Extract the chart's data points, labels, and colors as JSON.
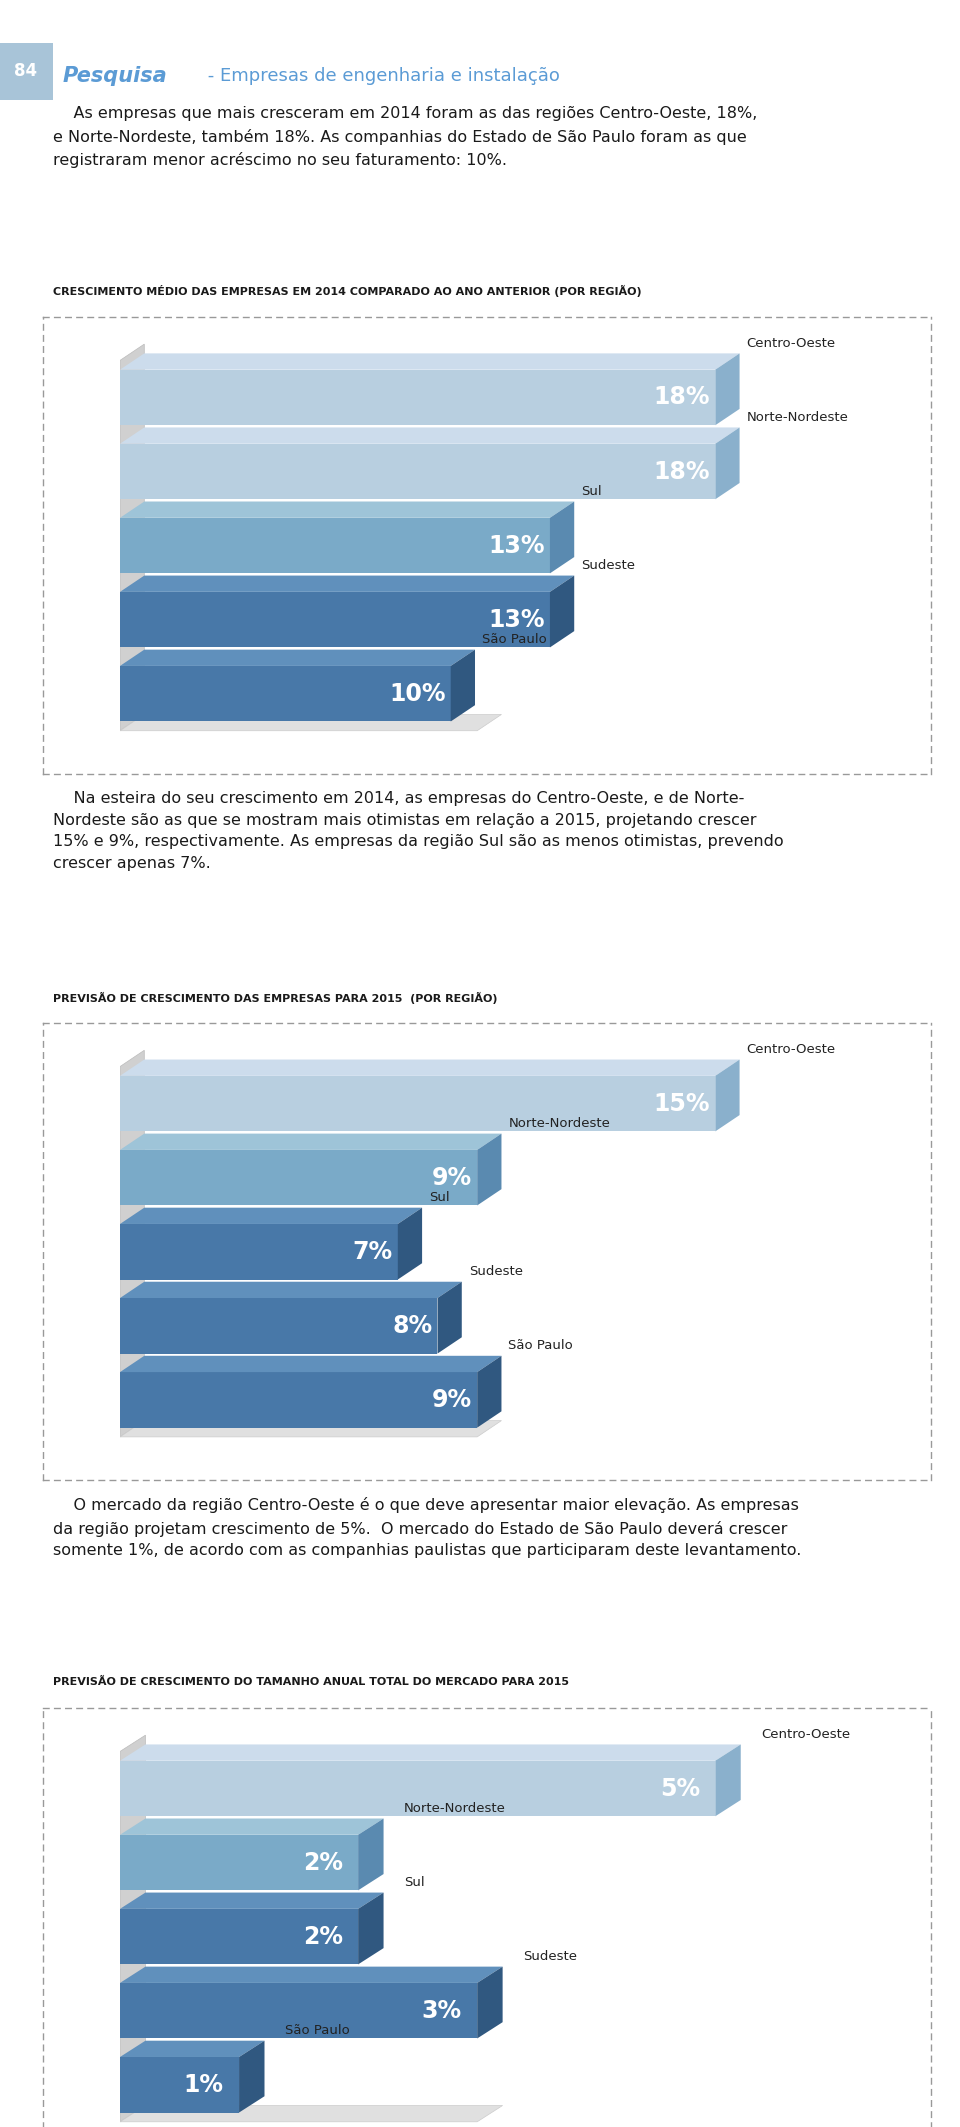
{
  "page_bg": "#ffffff",
  "header_strip_color": "#a8c4d8",
  "header_num": "84",
  "header_pesquisa": "Pesquisa",
  "header_subtitle": " - Empresas de engenharia e instalação",
  "header_color": "#5b9bd5",
  "para1_lines": [
    "    As empresas que mais cresceram em 2014 foram as das regiões Centro-Oeste, 18%,",
    "e Norte-Nordeste, também 18%. As companhias do Estado de São Paulo foram as que",
    "registraram menor acréscimo no seu faturamento: 10%."
  ],
  "chart1_title": "CRESCIMENTO MÉDIO DAS EMPRESAS EM 2014 COMPARADO AO ANO ANTERIOR (POR REGIÃO)",
  "chart1_categories": [
    "Centro-Oeste",
    "Norte-Nordeste",
    "Sul",
    "Sudeste",
    "São Paulo"
  ],
  "chart1_values": [
    18,
    18,
    13,
    13,
    10
  ],
  "chart2_title": "PREVISÃO DE CRESCIMENTO DAS EMPRESAS PARA 2015  (POR REGIÃO)",
  "chart2_categories": [
    "Centro-Oeste",
    "Norte-Nordeste",
    "Sul",
    "Sudeste",
    "São Paulo"
  ],
  "chart2_values": [
    15,
    9,
    7,
    8,
    9
  ],
  "para2_lines": [
    "    Na esteira do seu crescimento em 2014, as empresas do Centro-Oeste, e de Norte-",
    "Nordeste são as que se mostram mais otimistas em relação a 2015, projetando crescer",
    "15% e 9%, respectivamente. As empresas da região Sul são as menos otimistas, prevendo",
    "crescer apenas 7%."
  ],
  "chart3_title": "PREVISÃO DE CRESCIMENTO DO TAMANHO ANUAL TOTAL DO MERCADO PARA 2015",
  "chart3_categories": [
    "Centro-Oeste",
    "Norte-Nordeste",
    "Sul",
    "Sudeste",
    "São Paulo"
  ],
  "chart3_values": [
    5,
    2,
    2,
    3,
    1
  ],
  "para3_lines": [
    "    O mercado da região Centro-Oeste é o que deve apresentar maior elevação. As empresas",
    "da região projetam crescimento de 5%.  O mercado do Estado de São Paulo deverá crescer",
    "somente 1%, de acordo com as companhias paulistas que participaram deste levantamento."
  ],
  "text_color": "#1a1a1a",
  "title_fontsize": 8.0,
  "para_fontsize": 11.5,
  "bar_label_fontsize": 17,
  "cat_label_fontsize": 9.5,
  "dotted_color": "#999999"
}
